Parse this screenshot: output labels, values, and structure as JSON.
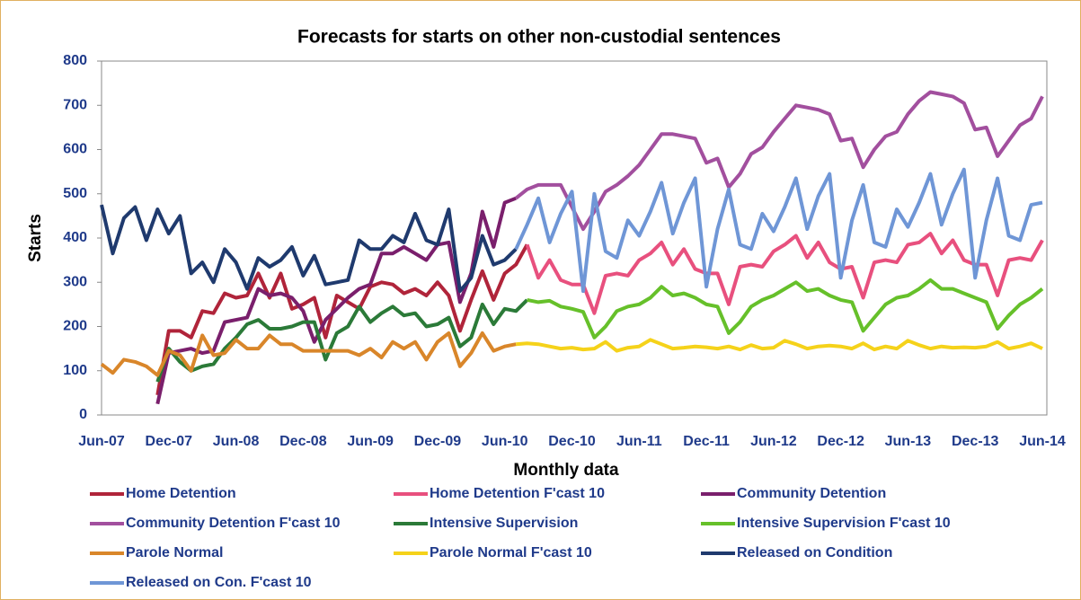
{
  "chart_data": {
    "type": "line",
    "title": "Forecasts for starts on other non-custodial sentences",
    "xlabel": "Monthly data",
    "ylabel": "Starts",
    "legend": "bottom",
    "ylim": [
      0,
      800
    ],
    "yticks": [
      0,
      100,
      200,
      300,
      400,
      500,
      600,
      700,
      800
    ],
    "categories": [
      "Jun-07",
      null,
      null,
      null,
      null,
      null,
      "Dec-07",
      null,
      null,
      null,
      null,
      null,
      "Jun-08",
      null,
      null,
      null,
      null,
      null,
      "Dec-08",
      null,
      null,
      null,
      null,
      null,
      "Jun-09",
      null,
      null,
      null,
      null,
      null,
      "Dec-09",
      null,
      null,
      null,
      null,
      null,
      "Jun-10",
      null,
      null,
      null,
      null,
      null,
      "Dec-10",
      null,
      null,
      null,
      null,
      null,
      "Jun-11",
      null,
      null,
      null,
      null,
      null,
      "Dec-11",
      null,
      null,
      null,
      null,
      null,
      "Jun-12",
      null,
      null,
      null,
      null,
      null,
      "Dec-12",
      null,
      null,
      null,
      null,
      null,
      "Jun-13",
      null,
      null,
      null,
      null,
      null,
      "Dec-13",
      null,
      null,
      null,
      null,
      null,
      "Jun-14"
    ],
    "series": [
      {
        "name": "Home Detention",
        "color": "#b0243a",
        "values": [
          null,
          null,
          null,
          null,
          null,
          45,
          190,
          190,
          175,
          235,
          230,
          275,
          265,
          270,
          320,
          265,
          320,
          240,
          250,
          265,
          175,
          270,
          255,
          240,
          290,
          300,
          295,
          275,
          285,
          270,
          300,
          270,
          190,
          260,
          325,
          260,
          320,
          340,
          385,
          null,
          null,
          null,
          null,
          null,
          null,
          null,
          null,
          null,
          null,
          null,
          null,
          null,
          null,
          null,
          null,
          null,
          null,
          null,
          null,
          null,
          null,
          null,
          null,
          null,
          null,
          null,
          null,
          null,
          null,
          null,
          null,
          null,
          null,
          null,
          null,
          null,
          null,
          null,
          null,
          null,
          null,
          null,
          null,
          null,
          null
        ]
      },
      {
        "name": "Home Detention F'cast 10",
        "color": "#e8507e",
        "values": [
          null,
          null,
          null,
          null,
          null,
          null,
          null,
          null,
          null,
          null,
          null,
          null,
          null,
          null,
          null,
          null,
          null,
          null,
          null,
          null,
          null,
          null,
          null,
          null,
          null,
          null,
          null,
          null,
          null,
          null,
          null,
          null,
          null,
          null,
          null,
          null,
          null,
          null,
          385,
          310,
          350,
          305,
          295,
          295,
          230,
          315,
          320,
          315,
          350,
          365,
          390,
          340,
          375,
          330,
          320,
          320,
          250,
          335,
          340,
          335,
          370,
          385,
          405,
          355,
          390,
          345,
          330,
          335,
          265,
          345,
          350,
          345,
          385,
          390,
          410,
          365,
          395,
          350,
          340,
          340,
          270,
          350,
          355,
          350,
          395
        ]
      },
      {
        "name": "Community Detention",
        "color": "#7a1f6c",
        "values": [
          null,
          null,
          null,
          null,
          null,
          25,
          140,
          145,
          150,
          140,
          145,
          210,
          215,
          220,
          285,
          270,
          275,
          265,
          235,
          165,
          215,
          240,
          265,
          285,
          295,
          365,
          365,
          380,
          365,
          350,
          385,
          390,
          255,
          320,
          460,
          380,
          480,
          490,
          null,
          null,
          null,
          null,
          null,
          null,
          null,
          null,
          null,
          null,
          null,
          null,
          null,
          null,
          null,
          null,
          null,
          null,
          null,
          null,
          null,
          null,
          null,
          null,
          null,
          null,
          null,
          null,
          null,
          null,
          null,
          null,
          null,
          null,
          null,
          null,
          null,
          null,
          null,
          null,
          null,
          null,
          null,
          null,
          null,
          null,
          null
        ]
      },
      {
        "name": "Community Detention F'cast 10",
        "color": "#a24f9e",
        "values": [
          null,
          null,
          null,
          null,
          null,
          null,
          null,
          null,
          null,
          null,
          null,
          null,
          null,
          null,
          null,
          null,
          null,
          null,
          null,
          null,
          null,
          null,
          null,
          null,
          null,
          null,
          null,
          null,
          null,
          null,
          null,
          null,
          null,
          null,
          null,
          null,
          null,
          490,
          510,
          520,
          520,
          520,
          470,
          420,
          460,
          505,
          520,
          540,
          565,
          600,
          635,
          635,
          630,
          625,
          570,
          580,
          515,
          545,
          590,
          605,
          640,
          670,
          700,
          695,
          690,
          680,
          620,
          625,
          560,
          600,
          630,
          640,
          680,
          710,
          730,
          725,
          720,
          705,
          645,
          650,
          585,
          620,
          655,
          670,
          720
        ]
      },
      {
        "name": "Intensive Supervision",
        "color": "#2b7a38",
        "values": [
          null,
          null,
          null,
          null,
          null,
          75,
          150,
          120,
          100,
          110,
          115,
          150,
          175,
          205,
          215,
          195,
          195,
          200,
          210,
          210,
          125,
          185,
          200,
          245,
          210,
          230,
          245,
          225,
          230,
          200,
          205,
          220,
          155,
          175,
          250,
          205,
          240,
          235,
          260,
          null,
          null,
          null,
          null,
          null,
          null,
          null,
          null,
          null,
          null,
          null,
          null,
          null,
          null,
          null,
          null,
          null,
          null,
          null,
          null,
          null,
          null,
          null,
          null,
          null,
          null,
          null,
          null,
          null,
          null,
          null,
          null,
          null,
          null,
          null,
          null,
          null,
          null,
          null,
          null,
          null,
          null,
          null,
          null,
          null,
          null
        ]
      },
      {
        "name": "Intensive Supervision F'cast 10",
        "color": "#66c02a",
        "values": [
          null,
          null,
          null,
          null,
          null,
          null,
          null,
          null,
          null,
          null,
          null,
          null,
          null,
          null,
          null,
          null,
          null,
          null,
          null,
          null,
          null,
          null,
          null,
          null,
          null,
          null,
          null,
          null,
          null,
          null,
          null,
          null,
          null,
          null,
          null,
          null,
          null,
          null,
          260,
          255,
          258,
          245,
          240,
          233,
          175,
          200,
          235,
          245,
          250,
          265,
          290,
          270,
          275,
          265,
          250,
          245,
          185,
          210,
          245,
          260,
          270,
          285,
          300,
          280,
          285,
          270,
          260,
          255,
          190,
          220,
          250,
          265,
          270,
          285,
          305,
          285,
          285,
          275,
          265,
          255,
          195,
          225,
          250,
          265,
          285
        ]
      },
      {
        "name": "Parole Normal",
        "color": "#d9862a",
        "values": [
          115,
          95,
          125,
          120,
          110,
          90,
          145,
          135,
          100,
          180,
          135,
          140,
          170,
          150,
          150,
          180,
          160,
          160,
          145,
          145,
          145,
          145,
          145,
          135,
          150,
          130,
          165,
          150,
          165,
          125,
          165,
          185,
          110,
          140,
          185,
          145,
          155,
          160,
          null,
          null,
          null,
          null,
          null,
          null,
          null,
          null,
          null,
          null,
          null,
          null,
          null,
          null,
          null,
          null,
          null,
          null,
          null,
          null,
          null,
          null,
          null,
          null,
          null,
          null,
          null,
          null,
          null,
          null,
          null,
          null,
          null,
          null,
          null,
          null,
          null,
          null,
          null,
          null,
          null,
          null,
          null,
          null,
          null,
          null,
          null
        ]
      },
      {
        "name": "Parole Normal F'cast 10",
        "color": "#f5d21a",
        "values": [
          null,
          null,
          null,
          null,
          null,
          null,
          null,
          null,
          null,
          null,
          null,
          null,
          null,
          null,
          null,
          null,
          null,
          null,
          null,
          null,
          null,
          null,
          null,
          null,
          null,
          null,
          null,
          null,
          null,
          null,
          null,
          null,
          null,
          null,
          null,
          null,
          null,
          160,
          162,
          160,
          155,
          150,
          152,
          148,
          150,
          165,
          145,
          152,
          155,
          170,
          160,
          150,
          152,
          155,
          153,
          150,
          155,
          148,
          158,
          150,
          152,
          168,
          160,
          150,
          155,
          157,
          155,
          150,
          162,
          148,
          155,
          150,
          168,
          158,
          150,
          155,
          152,
          153,
          152,
          155,
          165,
          150,
          155,
          162,
          150
        ]
      },
      {
        "name": "Released on Condition",
        "color": "#1f3a6e",
        "values": [
          475,
          365,
          445,
          470,
          395,
          465,
          410,
          450,
          320,
          345,
          300,
          375,
          345,
          285,
          355,
          335,
          350,
          380,
          315,
          360,
          295,
          300,
          305,
          395,
          375,
          375,
          405,
          390,
          455,
          395,
          385,
          465,
          280,
          310,
          405,
          340,
          350,
          375,
          null,
          null,
          null,
          null,
          null,
          null,
          null,
          null,
          null,
          null,
          null,
          null,
          null,
          null,
          null,
          null,
          null,
          null,
          null,
          null,
          null,
          null,
          null,
          null,
          null,
          null,
          null,
          null,
          null,
          null,
          null,
          null,
          null,
          null,
          null,
          null,
          null,
          null,
          null,
          null,
          null,
          null,
          null,
          null,
          null,
          null,
          null
        ]
      },
      {
        "name": "Released on Con. F'cast 10",
        "color": "#6f96d6",
        "values": [
          null,
          null,
          null,
          null,
          null,
          null,
          null,
          null,
          null,
          null,
          null,
          null,
          null,
          null,
          null,
          null,
          null,
          null,
          null,
          null,
          null,
          null,
          null,
          null,
          null,
          null,
          null,
          null,
          null,
          null,
          null,
          null,
          null,
          null,
          null,
          null,
          null,
          375,
          430,
          490,
          390,
          455,
          505,
          280,
          500,
          370,
          355,
          440,
          405,
          460,
          525,
          410,
          480,
          535,
          290,
          420,
          510,
          385,
          375,
          455,
          415,
          470,
          535,
          420,
          495,
          545,
          310,
          440,
          520,
          390,
          380,
          465,
          425,
          480,
          545,
          430,
          500,
          555,
          310,
          440,
          535,
          405,
          395,
          475,
          480
        ]
      }
    ]
  }
}
